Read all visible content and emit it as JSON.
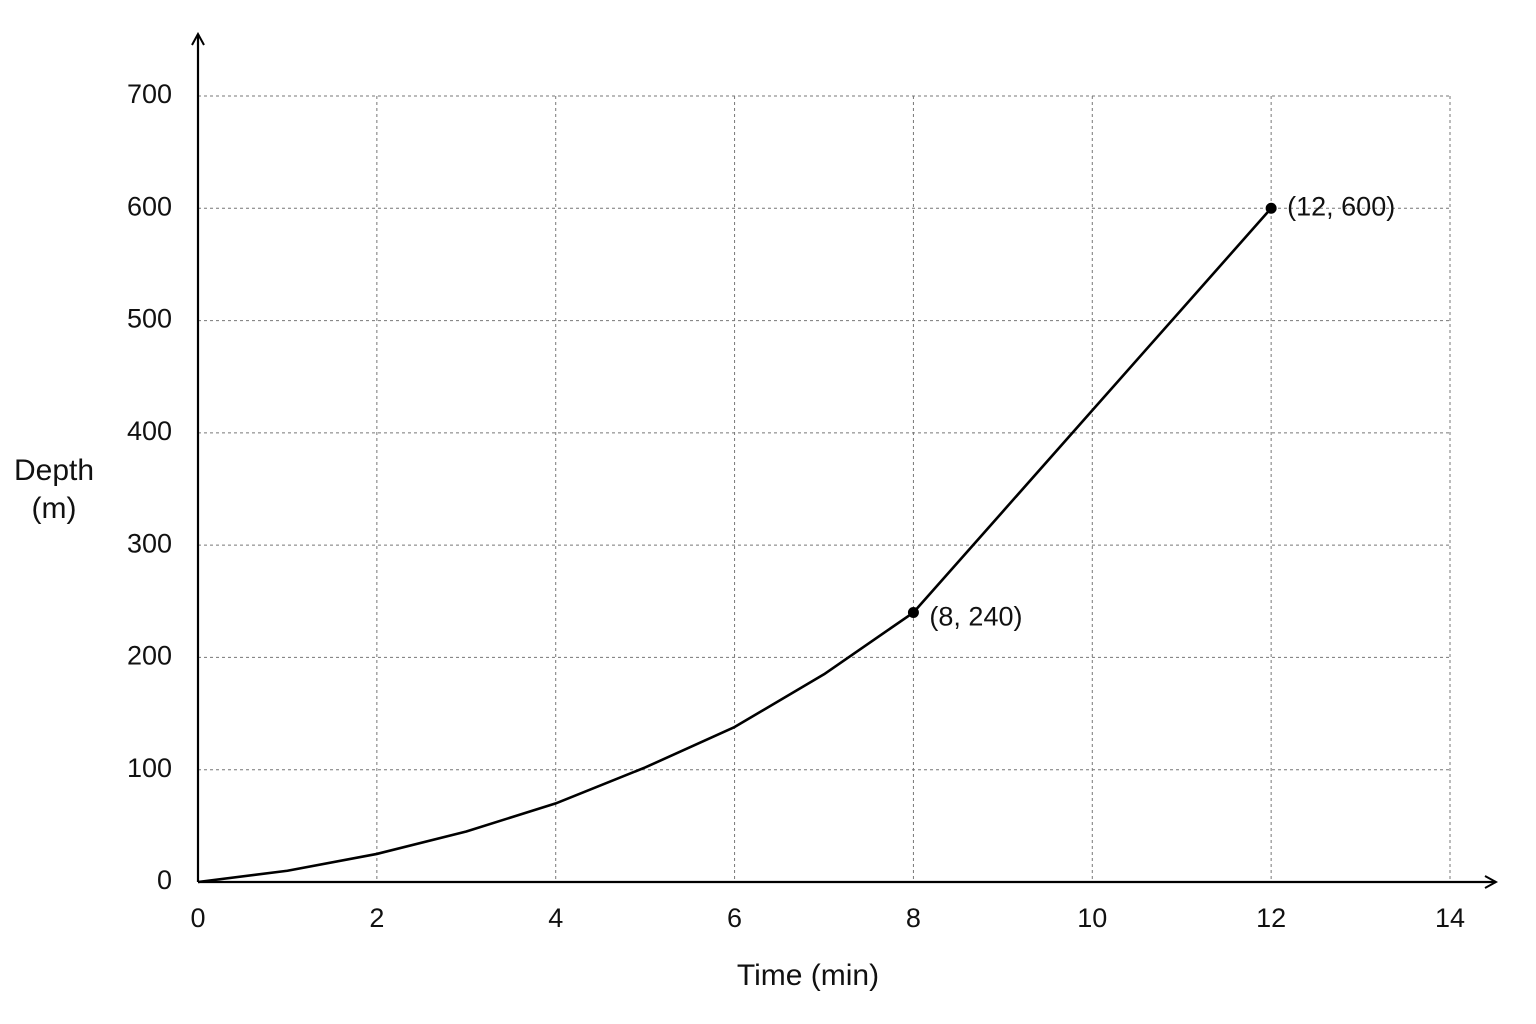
{
  "chart_data": {
    "type": "line",
    "x_label": "Time (min)",
    "y_label": [
      "Depth",
      "(m)"
    ],
    "x": [
      0,
      1,
      2,
      3,
      4,
      5,
      6,
      7,
      8,
      9,
      10,
      11,
      12
    ],
    "series": [
      {
        "color": "#000000",
        "values": [
          0,
          10,
          25,
          45,
          70,
          102,
          138,
          185,
          240,
          330,
          420,
          510,
          600
        ]
      }
    ],
    "markers": [
      8,
      12
    ],
    "annotations": [
      {
        "text": "(8, 240)",
        "x": 8,
        "y": 240
      },
      {
        "text": "(12, 600)",
        "x": 12,
        "y": 600
      }
    ],
    "xlim": [
      0,
      14
    ],
    "xticks": [
      0,
      2,
      4,
      6,
      8,
      10,
      12,
      14
    ],
    "ylim": [
      0,
      700
    ],
    "yticks": [
      0,
      100,
      200,
      300,
      400,
      500,
      600,
      700
    ],
    "grid": true
  }
}
